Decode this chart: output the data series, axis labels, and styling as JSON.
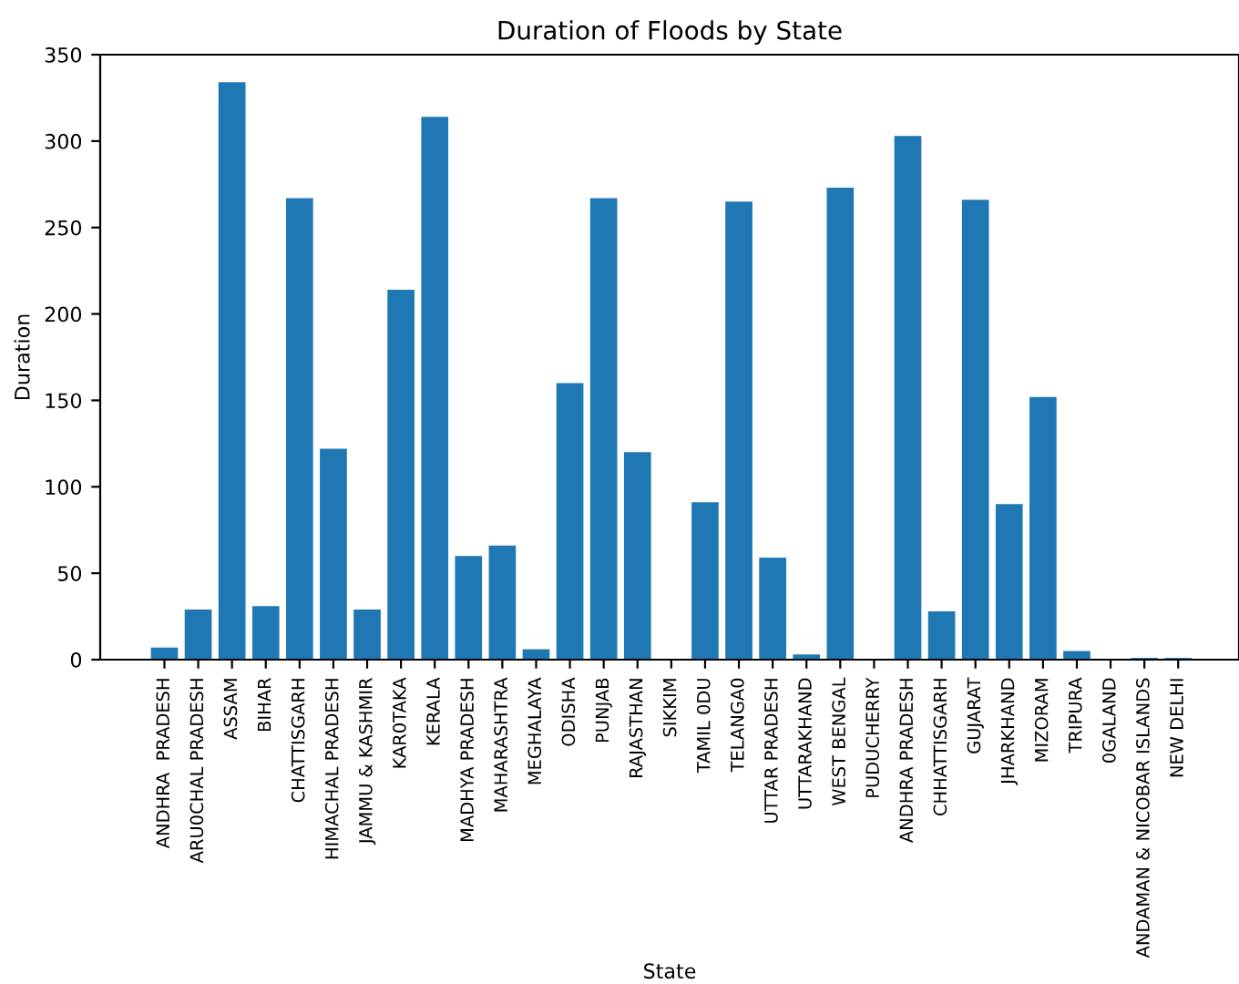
{
  "chart_data": {
    "type": "bar",
    "title": "Duration of Floods by State",
    "xlabel": "State",
    "ylabel": "Duration",
    "categories": [
      "ANDHRA  PRADESH",
      "ARU0CHAL PRADESH",
      "ASSAM",
      "BIHAR",
      "CHATTISGARH",
      "HIMACHAL PRADESH",
      "JAMMU & KASHMIR",
      "KAR0TAKA",
      "KERALA",
      "MADHYA PRADESH",
      "MAHARASHTRA",
      "MEGHALAYA",
      "ODISHA",
      "PUNJAB",
      "RAJASTHAN",
      "SIKKIM",
      "TAMIL 0DU",
      "TELANGA0",
      "UTTAR PRADESH",
      "UTTARAKHAND",
      "WEST BENGAL",
      "PUDUCHERRY",
      "ANDHRA PRADESH",
      "CHHATTISGARH",
      "GUJARAT",
      "JHARKHAND",
      "MIZORAM",
      "TRIPURA",
      "0GALAND",
      "ANDAMAN & NICOBAR ISLANDS",
      "NEW DELHI"
    ],
    "values": [
      7,
      29,
      334,
      31,
      267,
      122,
      29,
      214,
      314,
      60,
      66,
      6,
      160,
      267,
      120,
      0,
      91,
      265,
      59,
      3,
      273,
      0,
      303,
      28,
      266,
      90,
      152,
      5,
      0,
      1,
      1
    ],
    "color": "#1f77b4",
    "ylim": [
      0,
      350
    ],
    "yticks": [
      0,
      50,
      100,
      150,
      200,
      250,
      300,
      350
    ],
    "grid": false
  }
}
